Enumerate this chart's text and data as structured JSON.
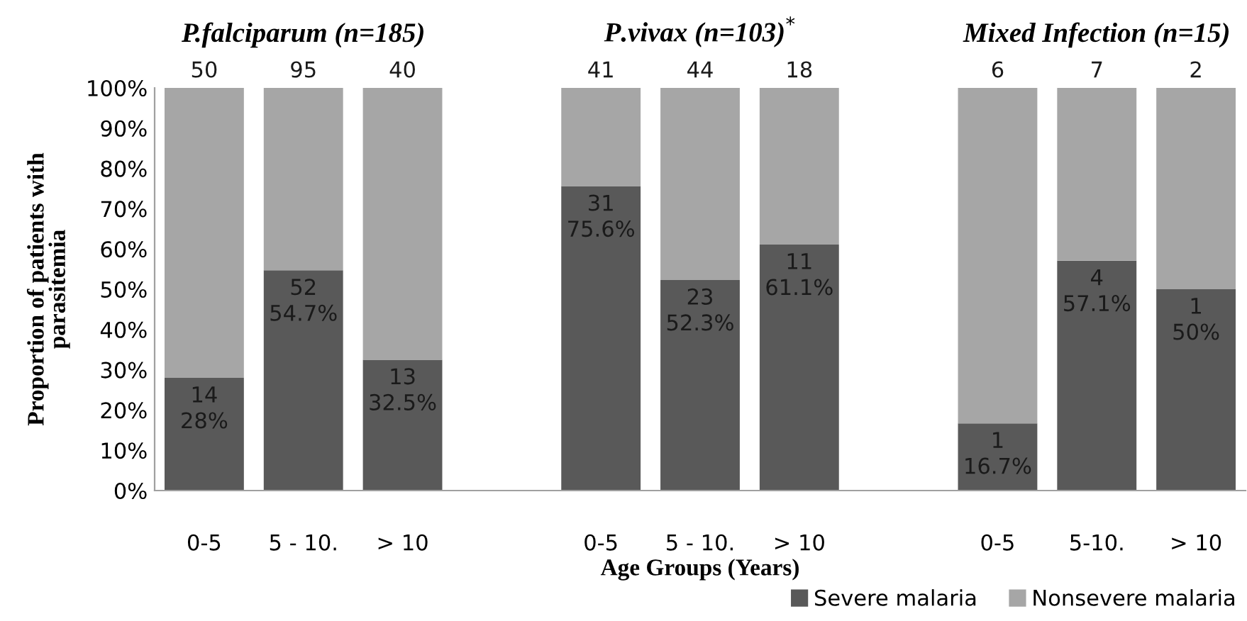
{
  "chart_data": {
    "type": "bar",
    "stacked": true,
    "categories": [
      "0-5",
      "5 - 10.",
      "> 10",
      null,
      "0-5",
      "5 - 10.",
      "> 10",
      null,
      "0-5",
      "5-10.",
      "> 10"
    ],
    "series": [
      {
        "name": "Severe malaria",
        "color": "#595959",
        "values": [
          28,
          54.7,
          32.5,
          null,
          75.6,
          52.3,
          61.1,
          null,
          16.7,
          57.1,
          50
        ],
        "value_labels": [
          "14\n28%",
          "52\n54.7%",
          "13\n32.5%",
          null,
          "31\n75.6%",
          "23\n52.3%",
          "11\n61.1%",
          null,
          "1\n16.7%",
          "4\n57.1%",
          "1\n50%"
        ]
      },
      {
        "name": "Nonsevere malaria",
        "color": "#a6a6a6",
        "values": [
          72,
          45.3,
          67.5,
          null,
          24.4,
          47.7,
          38.9,
          null,
          83.3,
          42.9,
          50
        ]
      }
    ],
    "annotations": [
      "P.falciparum (n=185)",
      "P.vivax (n=103)$^{*}$",
      "Mixed Infection (n=15)",
      "50",
      "95",
      "40",
      "41",
      "44",
      "18",
      "6",
      "7",
      "2"
    ],
    "xlabel": "Age Groups (Years)",
    "ylabel": "Proportion of patients with\nparasitemia",
    "ylim": [
      0,
      100
    ],
    "yticks": [
      {
        "value": 0,
        "label": "0%"
      },
      {
        "value": 10,
        "label": "10%"
      },
      {
        "value": 20,
        "label": "20%"
      },
      {
        "value": 30,
        "label": "30%"
      },
      {
        "value": 40,
        "label": "40%"
      },
      {
        "value": 50,
        "label": "50%"
      },
      {
        "value": 60,
        "label": "60%"
      },
      {
        "value": 70,
        "label": "70%"
      },
      {
        "value": 80,
        "label": "80%"
      },
      {
        "value": 90,
        "label": "90%"
      },
      {
        "value": 100,
        "label": "100%"
      }
    ],
    "grid": false,
    "legend": "bottom right"
  }
}
